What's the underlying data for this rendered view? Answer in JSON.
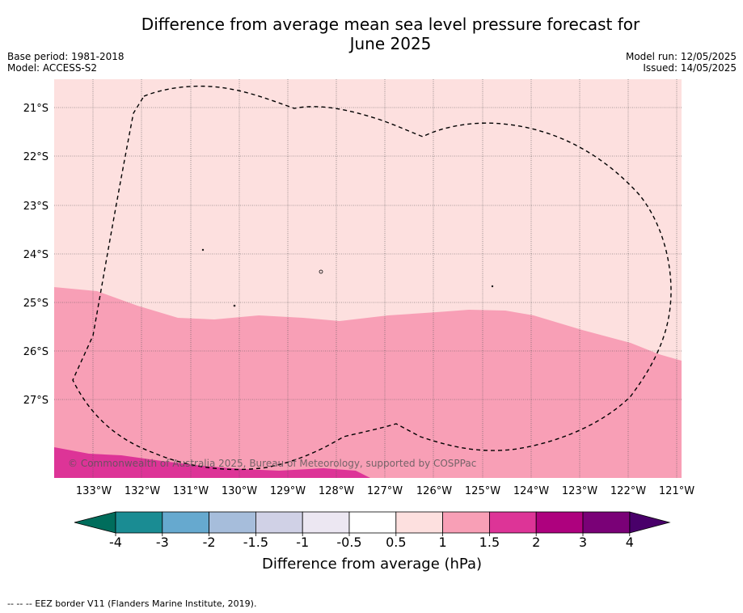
{
  "title_line1": "Difference from average mean sea level pressure forecast for",
  "title_line2": "June 2025",
  "meta_left": {
    "base_period": "Base period: 1981-2018",
    "model": "Model: ACCESS-S2"
  },
  "meta_right": {
    "model_run": "Model run: 12/05/2025",
    "issued": "Issued: 14/05/2025"
  },
  "copyright": "© Commonwealth of Australia 2025, Bureau of Meteorology, supported by COSPPac",
  "footer": "--  --  -- EEZ border V11 (Flanders Marine Institute, 2019).",
  "map": {
    "lat_labels": [
      "21°S",
      "22°S",
      "23°S",
      "24°S",
      "25°S",
      "26°S",
      "27°S"
    ],
    "lon_labels": [
      "133°W",
      "132°W",
      "131°W",
      "130°W",
      "129°W",
      "128°W",
      "127°W",
      "126°W",
      "125°W",
      "124°W",
      "123°W",
      "122°W",
      "121°W"
    ],
    "colors": {
      "band_0_5_1": "#fde0df",
      "band_1_1_5": "#f89fb6",
      "band_1_5_2": "#dd3497"
    }
  },
  "colorbar": {
    "label": "Difference from average (hPa)",
    "ticks": [
      "-4",
      "-3",
      "-2",
      "-1.5",
      "-1",
      "-0.5",
      "0.5",
      "1",
      "1.5",
      "2",
      "3",
      "4"
    ],
    "colors": [
      "#1a8c93",
      "#66a9cf",
      "#a6bddb",
      "#d0d1e6",
      "#ece7f2",
      "#ffffff",
      "#fde0df",
      "#f89fb6",
      "#dd3497",
      "#ae017e",
      "#7a0177"
    ],
    "low_color": "#006d5c",
    "high_color": "#49006a"
  }
}
